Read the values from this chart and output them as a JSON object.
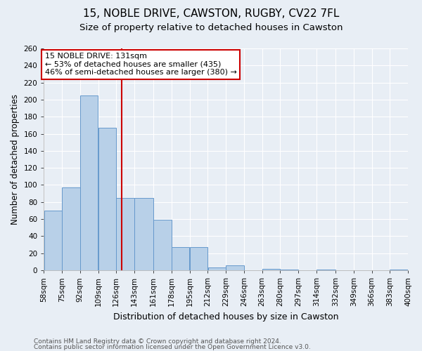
{
  "title1": "15, NOBLE DRIVE, CAWSTON, RUGBY, CV22 7FL",
  "title2": "Size of property relative to detached houses in Cawston",
  "xlabel": "Distribution of detached houses by size in Cawston",
  "ylabel": "Number of detached properties",
  "footer1": "Contains HM Land Registry data © Crown copyright and database right 2024.",
  "footer2": "Contains public sector information licensed under the Open Government Licence v3.0.",
  "bin_edges": [
    58,
    75,
    92,
    109,
    126,
    143,
    161,
    178,
    195,
    212,
    229,
    246,
    263,
    280,
    297,
    314,
    332,
    349,
    366,
    383,
    400
  ],
  "bin_labels": [
    "58sqm",
    "75sqm",
    "92sqm",
    "109sqm",
    "126sqm",
    "143sqm",
    "161sqm",
    "178sqm",
    "195sqm",
    "212sqm",
    "229sqm",
    "246sqm",
    "263sqm",
    "280sqm",
    "297sqm",
    "314sqm",
    "332sqm",
    "349sqm",
    "366sqm",
    "383sqm",
    "400sqm"
  ],
  "counts": [
    70,
    97,
    205,
    167,
    85,
    85,
    59,
    27,
    27,
    3,
    6,
    0,
    2,
    1,
    0,
    1,
    0,
    0,
    0,
    1
  ],
  "bar_color": "#b8d0e8",
  "bar_edge_color": "#6699cc",
  "property_value": 131,
  "vline_color": "#cc0000",
  "annotation_line1": "15 NOBLE DRIVE: 131sqm",
  "annotation_line2": "← 53% of detached houses are smaller (435)",
  "annotation_line3": "46% of semi-detached houses are larger (380) →",
  "annotation_box_color": "#ffffff",
  "annotation_box_edge_color": "#cc0000",
  "ylim": [
    0,
    260
  ],
  "yticks": [
    0,
    20,
    40,
    60,
    80,
    100,
    120,
    140,
    160,
    180,
    200,
    220,
    240,
    260
  ],
  "background_color": "#e8eef5",
  "grid_color": "#ffffff",
  "title1_fontsize": 11,
  "title2_fontsize": 9.5,
  "xlabel_fontsize": 9,
  "ylabel_fontsize": 8.5,
  "annotation_fontsize": 8,
  "tick_fontsize": 7.5,
  "footer_fontsize": 6.5
}
